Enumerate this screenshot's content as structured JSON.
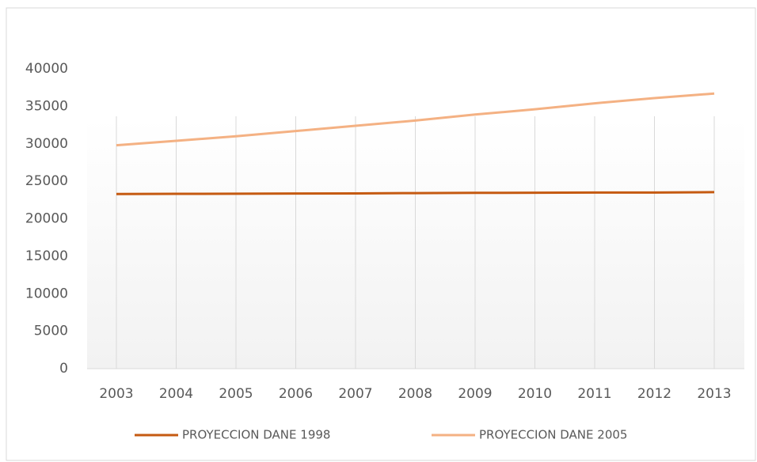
{
  "chart_data": {
    "type": "line",
    "categories": [
      "2003",
      "2004",
      "2005",
      "2006",
      "2007",
      "2008",
      "2009",
      "2010",
      "2011",
      "2012",
      "2013"
    ],
    "series": [
      {
        "name": "PROYECCION DANE 1998",
        "color": "#c55a11",
        "values": [
          23300,
          23320,
          23340,
          23360,
          23380,
          23420,
          23450,
          23470,
          23490,
          23500,
          23550
        ]
      },
      {
        "name": "PROYECCION DANE 2005",
        "color": "#f4b183",
        "values": [
          29800,
          30400,
          31000,
          31700,
          32400,
          33100,
          33900,
          34600,
          35400,
          36100,
          36700
        ]
      }
    ],
    "ylim": [
      0,
      40000
    ],
    "yticks": [
      0,
      5000,
      10000,
      15000,
      20000,
      25000,
      30000,
      35000,
      40000
    ],
    "grid": "x",
    "legend": "bottom"
  }
}
